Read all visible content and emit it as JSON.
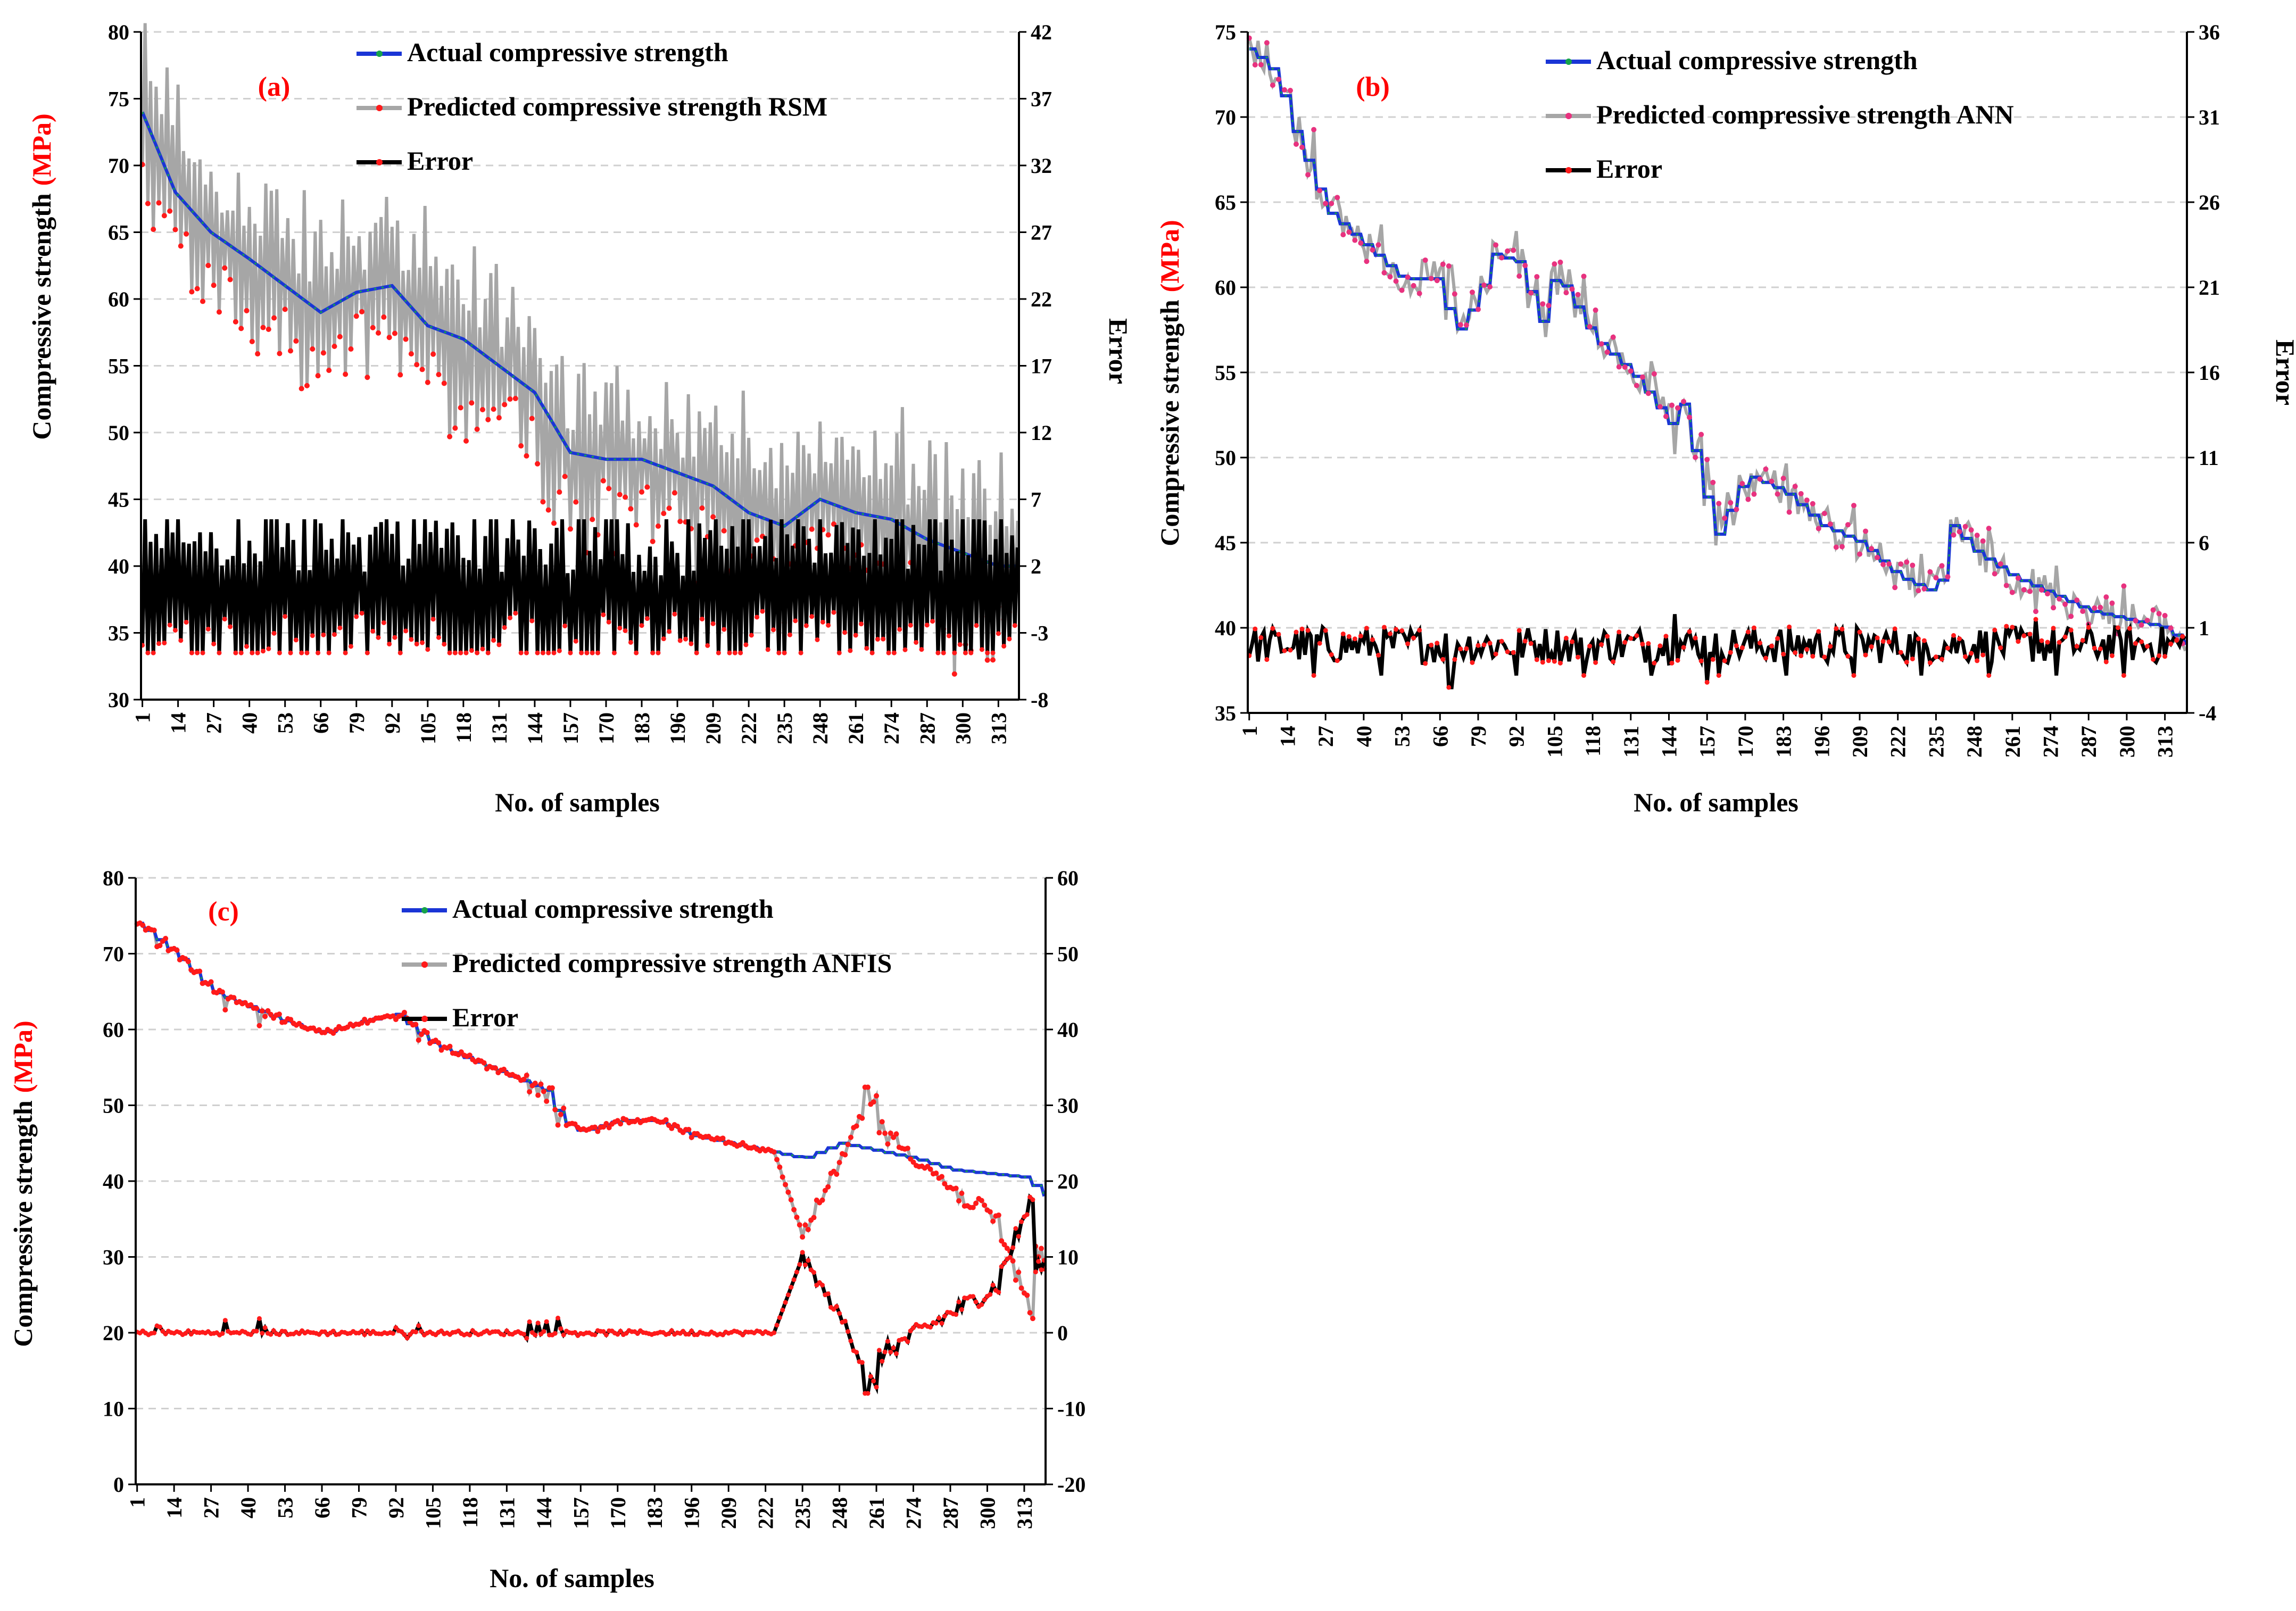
{
  "colors": {
    "actual": "#1a35d6",
    "actual_accent": "#16a34a",
    "predicted": "#a6a6a6",
    "predicted_marker": "#ff1a1a",
    "predicted_marker_ann": "#e8327f",
    "error": "#000000",
    "error_marker": "#ff1a1a",
    "unit": "#ff0000"
  },
  "chart_data": [
    {
      "type": "line",
      "panel_label": "(a)",
      "xlabel": "No. of samples",
      "ylabel": "Compressive strength",
      "ylabel_unit": "(MPa)",
      "y2label": "Error",
      "x_tick_labels": [
        "1",
        "14",
        "27",
        "40",
        "53",
        "66",
        "79",
        "92",
        "105",
        "118",
        "131",
        "144",
        "157",
        "170",
        "183",
        "196",
        "209",
        "222",
        "235",
        "248",
        "261",
        "274",
        "287",
        "300",
        "313"
      ],
      "n_samples": 320,
      "ylim": [
        30,
        80
      ],
      "y_ticks": [
        30,
        35,
        40,
        45,
        50,
        55,
        60,
        65,
        70,
        75,
        80
      ],
      "y2lim": [
        -8,
        42
      ],
      "y2_ticks": [
        -8,
        -3,
        2,
        7,
        12,
        17,
        22,
        27,
        32,
        37,
        42
      ],
      "series": [
        {
          "name": "Actual compressive strength",
          "role": "actual",
          "anchors": [
            [
              1,
              74
            ],
            [
              13,
              68
            ],
            [
              26,
              65
            ],
            [
              40,
              63
            ],
            [
              53,
              61
            ],
            [
              66,
              59
            ],
            [
              79,
              60.5
            ],
            [
              92,
              61
            ],
            [
              105,
              58
            ],
            [
              118,
              57
            ],
            [
              131,
              55
            ],
            [
              144,
              53
            ],
            [
              157,
              48.5
            ],
            [
              170,
              48
            ],
            [
              183,
              48
            ],
            [
              196,
              47
            ],
            [
              209,
              46
            ],
            [
              222,
              44
            ],
            [
              235,
              43
            ],
            [
              248,
              45
            ],
            [
              261,
              44
            ],
            [
              274,
              43.5
            ],
            [
              287,
              42
            ],
            [
              300,
              41
            ],
            [
              313,
              40
            ],
            [
              320,
              40
            ]
          ]
        },
        {
          "name": "Predicted compressive strength RSM",
          "role": "predicted",
          "axis": "left",
          "description": "Oscillates around the actual curve with amplitude of about 4 to 8 MPa"
        },
        {
          "name": "Error",
          "role": "error",
          "axis": "right",
          "description": "Oscillates between roughly -4 and 5 around 0, peak near sample 66"
        }
      ]
    },
    {
      "type": "line",
      "panel_label": "(b)",
      "xlabel": "No. of samples",
      "ylabel": "Compressive strength",
      "ylabel_unit": "(MPa)",
      "y2label": "Error",
      "x_tick_labels": [
        "1",
        "14",
        "27",
        "40",
        "53",
        "66",
        "79",
        "92",
        "105",
        "118",
        "131",
        "144",
        "157",
        "170",
        "183",
        "196",
        "209",
        "222",
        "235",
        "248",
        "261",
        "274",
        "287",
        "300",
        "313"
      ],
      "n_samples": 320,
      "ylim": [
        35,
        75
      ],
      "y_ticks": [
        35,
        40,
        45,
        50,
        55,
        60,
        65,
        70,
        75
      ],
      "y2lim": [
        -4,
        36
      ],
      "y2_ticks": [
        -4,
        1,
        6,
        11,
        16,
        21,
        26,
        31,
        36
      ],
      "series": [
        {
          "name": "Actual compressive strength",
          "role": "actual",
          "anchors": [
            [
              1,
              74
            ],
            [
              10,
              72.5
            ],
            [
              14,
              70
            ],
            [
              27,
              64.5
            ],
            [
              40,
              62.5
            ],
            [
              53,
              60.5
            ],
            [
              66,
              60.5
            ],
            [
              70,
              57
            ],
            [
              79,
              59.5
            ],
            [
              83,
              62
            ],
            [
              92,
              61.5
            ],
            [
              100,
              58
            ],
            [
              105,
              61
            ],
            [
              118,
              57
            ],
            [
              131,
              55
            ],
            [
              144,
              52
            ],
            [
              146,
              54.5
            ],
            [
              157,
              47
            ],
            [
              160,
              45.5
            ],
            [
              170,
              49
            ],
            [
              183,
              48
            ],
            [
              196,
              46
            ],
            [
              209,
              45
            ],
            [
              222,
              43
            ],
            [
              235,
              42
            ],
            [
              240,
              46
            ],
            [
              248,
              44.5
            ],
            [
              261,
              43
            ],
            [
              274,
              42
            ],
            [
              287,
              41
            ],
            [
              300,
              40.5
            ],
            [
              313,
              40
            ],
            [
              320,
              39
            ]
          ]
        },
        {
          "name": "Predicted compressive strength ANN",
          "role": "predicted",
          "axis": "left",
          "description": "Tracks the actual curve very closely"
        },
        {
          "name": "Error",
          "role": "error",
          "axis": "right",
          "description": "Small fluctuations around 0, roughly -2.5 to 2"
        }
      ]
    },
    {
      "type": "line",
      "panel_label": "(c)",
      "xlabel": "No. of samples",
      "ylabel": "Compressive strength",
      "ylabel_unit": "(MPa)",
      "y2label": "",
      "x_tick_labels": [
        "1",
        "14",
        "27",
        "40",
        "53",
        "66",
        "79",
        "92",
        "105",
        "118",
        "131",
        "144",
        "157",
        "170",
        "183",
        "196",
        "209",
        "222",
        "235",
        "248",
        "261",
        "274",
        "287",
        "300",
        "313"
      ],
      "n_samples": 320,
      "ylim": [
        0,
        80
      ],
      "y_ticks": [
        0,
        10,
        20,
        30,
        40,
        50,
        60,
        70,
        80
      ],
      "y2lim": [
        -20,
        60
      ],
      "y2_ticks": [
        -20,
        -10,
        0,
        10,
        20,
        30,
        40,
        50,
        60
      ],
      "series": [
        {
          "name": "Actual compressive strength",
          "role": "actual",
          "anchors": [
            [
              1,
              74
            ],
            [
              14,
              70
            ],
            [
              27,
              65
            ],
            [
              40,
              63
            ],
            [
              53,
              61
            ],
            [
              66,
              59.5
            ],
            [
              79,
              61
            ],
            [
              92,
              62
            ],
            [
              105,
              58
            ],
            [
              118,
              56
            ],
            [
              131,
              54
            ],
            [
              144,
              52
            ],
            [
              150,
              48
            ],
            [
              157,
              46.5
            ],
            [
              170,
              48
            ],
            [
              183,
              48
            ],
            [
              196,
              46
            ],
            [
              209,
              45
            ],
            [
              222,
              44
            ],
            [
              235,
              43
            ],
            [
              248,
              45
            ],
            [
              261,
              44
            ],
            [
              274,
              43
            ],
            [
              287,
              41.5
            ],
            [
              300,
              41
            ],
            [
              313,
              40.5
            ],
            [
              320,
              38
            ]
          ]
        },
        {
          "name": "Predicted compressive strength ANFIS",
          "role": "predicted",
          "axis": "left",
          "description": "Matches actual up to sample 225, then drops to about 32 near 235, rises to 50 near 260 and ends around 25"
        },
        {
          "name": "Error",
          "role": "error",
          "axis": "right",
          "description": "Near 0 until sample 225, peaks at about 10 near 235, dips to -8 near 258, rises to about 18 near 313"
        }
      ]
    }
  ]
}
